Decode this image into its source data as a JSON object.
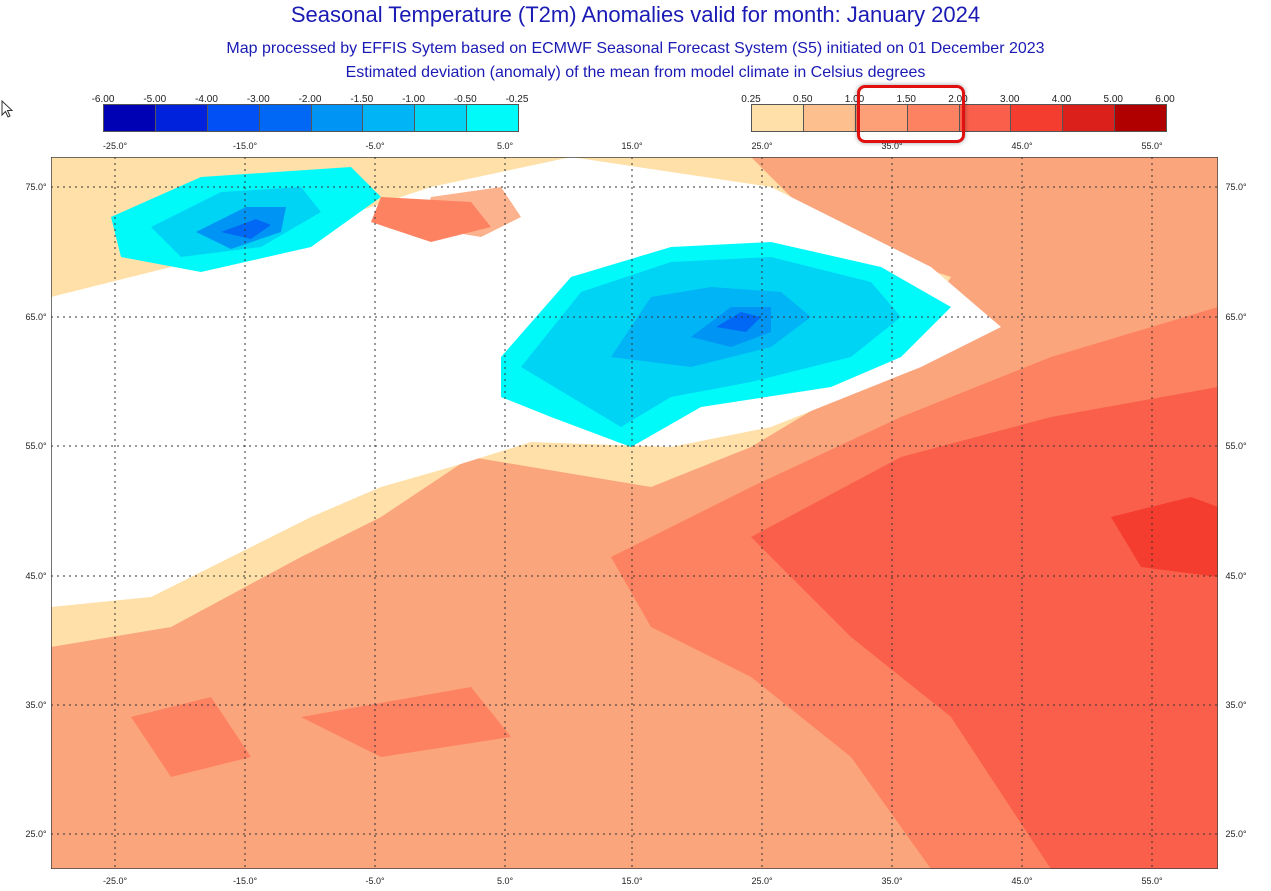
{
  "title": "Seasonal Temperature (T2m) Anomalies valid for month: January 2024",
  "subtitle1": "Map processed by EFFIS Sytem based on ECMWF Seasonal Forecast System (S5) initiated on 01 December 2023",
  "subtitle2": "Estimated deviation (anomaly) of the mean from model climate in Celsius degrees",
  "legend_negative": {
    "labels": [
      "-6.00",
      "-5.00",
      "-4.00",
      "-3.00",
      "-2.00",
      "-1.50",
      "-1.00",
      "-0.50",
      "-0.25"
    ],
    "colors": [
      "#0000b4",
      "#0022dd",
      "#0050f5",
      "#0068f5",
      "#0095f5",
      "#00b4f5",
      "#00d4f5",
      "#00fafa"
    ]
  },
  "legend_positive": {
    "labels": [
      "0.25",
      "0.50",
      "1.00",
      "1.50",
      "2.00",
      "3.00",
      "4.00",
      "5.00",
      "6.00"
    ],
    "colors": [
      "#fee0a8",
      "#fdbf8d",
      "#fda077",
      "#fd8262",
      "#f95f4a",
      "#f43c2f",
      "#db1f1a",
      "#b10000"
    ]
  },
  "lon_labels": [
    "-25.0°",
    "-15.0°",
    "-5.0°",
    "5.0°",
    "15.0°",
    "25.0°",
    "35.0°",
    "45.0°",
    "55.0°"
  ],
  "lat_labels": [
    "75.0°",
    "65.0°",
    "55.0°",
    "45.0°",
    "35.0°",
    "25.0°"
  ]
}
